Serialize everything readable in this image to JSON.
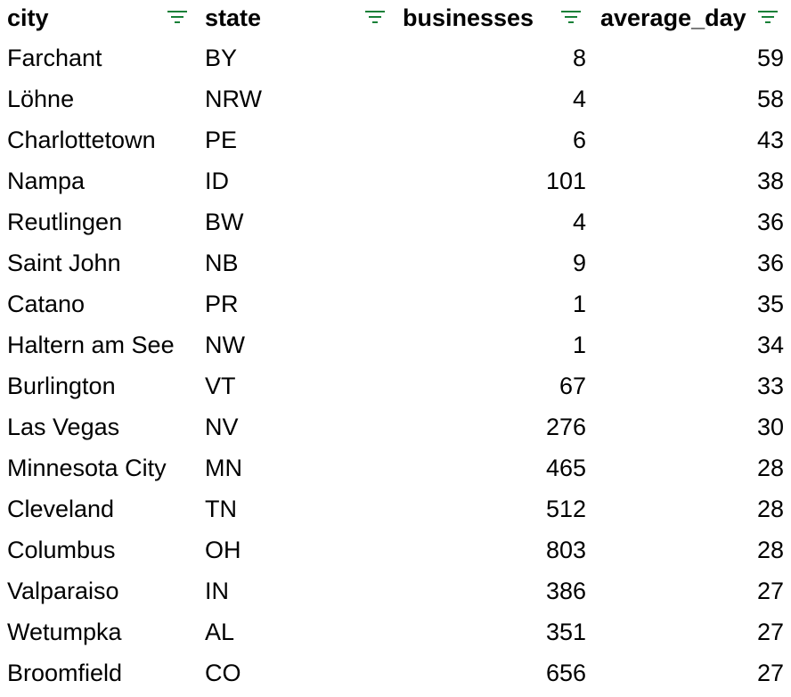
{
  "accent_color": "#188038",
  "filter_icon": "filter-lines-icon",
  "columns": [
    {
      "key": "city",
      "label": "city"
    },
    {
      "key": "state",
      "label": "state"
    },
    {
      "key": "businesses",
      "label": "businesses"
    },
    {
      "key": "average_day",
      "label": "average_day"
    }
  ],
  "rows": [
    {
      "city": "Farchant",
      "state": "BY",
      "businesses": "8",
      "average_day": "59"
    },
    {
      "city": "Löhne",
      "state": "NRW",
      "businesses": "4",
      "average_day": "58"
    },
    {
      "city": "Charlottetown",
      "state": "PE",
      "businesses": "6",
      "average_day": "43"
    },
    {
      "city": "Nampa",
      "state": "ID",
      "businesses": "101",
      "average_day": "38"
    },
    {
      "city": "Reutlingen",
      "state": "BW",
      "businesses": "4",
      "average_day": "36"
    },
    {
      "city": "Saint John",
      "state": "NB",
      "businesses": "9",
      "average_day": "36"
    },
    {
      "city": "Catano",
      "state": "PR",
      "businesses": "1",
      "average_day": "35"
    },
    {
      "city": "Haltern am See",
      "state": "NW",
      "businesses": "1",
      "average_day": "34"
    },
    {
      "city": "Burlington",
      "state": "VT",
      "businesses": "67",
      "average_day": "33"
    },
    {
      "city": "Las Vegas",
      "state": "NV",
      "businesses": "276",
      "average_day": "30"
    },
    {
      "city": "Minnesota City",
      "state": "MN",
      "businesses": "465",
      "average_day": "28"
    },
    {
      "city": "Cleveland",
      "state": "TN",
      "businesses": "512",
      "average_day": "28"
    },
    {
      "city": "Columbus",
      "state": "OH",
      "businesses": "803",
      "average_day": "28"
    },
    {
      "city": "Valparaiso",
      "state": "IN",
      "businesses": "386",
      "average_day": "27"
    },
    {
      "city": "Wetumpka",
      "state": "AL",
      "businesses": "351",
      "average_day": "27"
    },
    {
      "city": "Broomfield",
      "state": "CO",
      "businesses": "656",
      "average_day": "27"
    }
  ]
}
